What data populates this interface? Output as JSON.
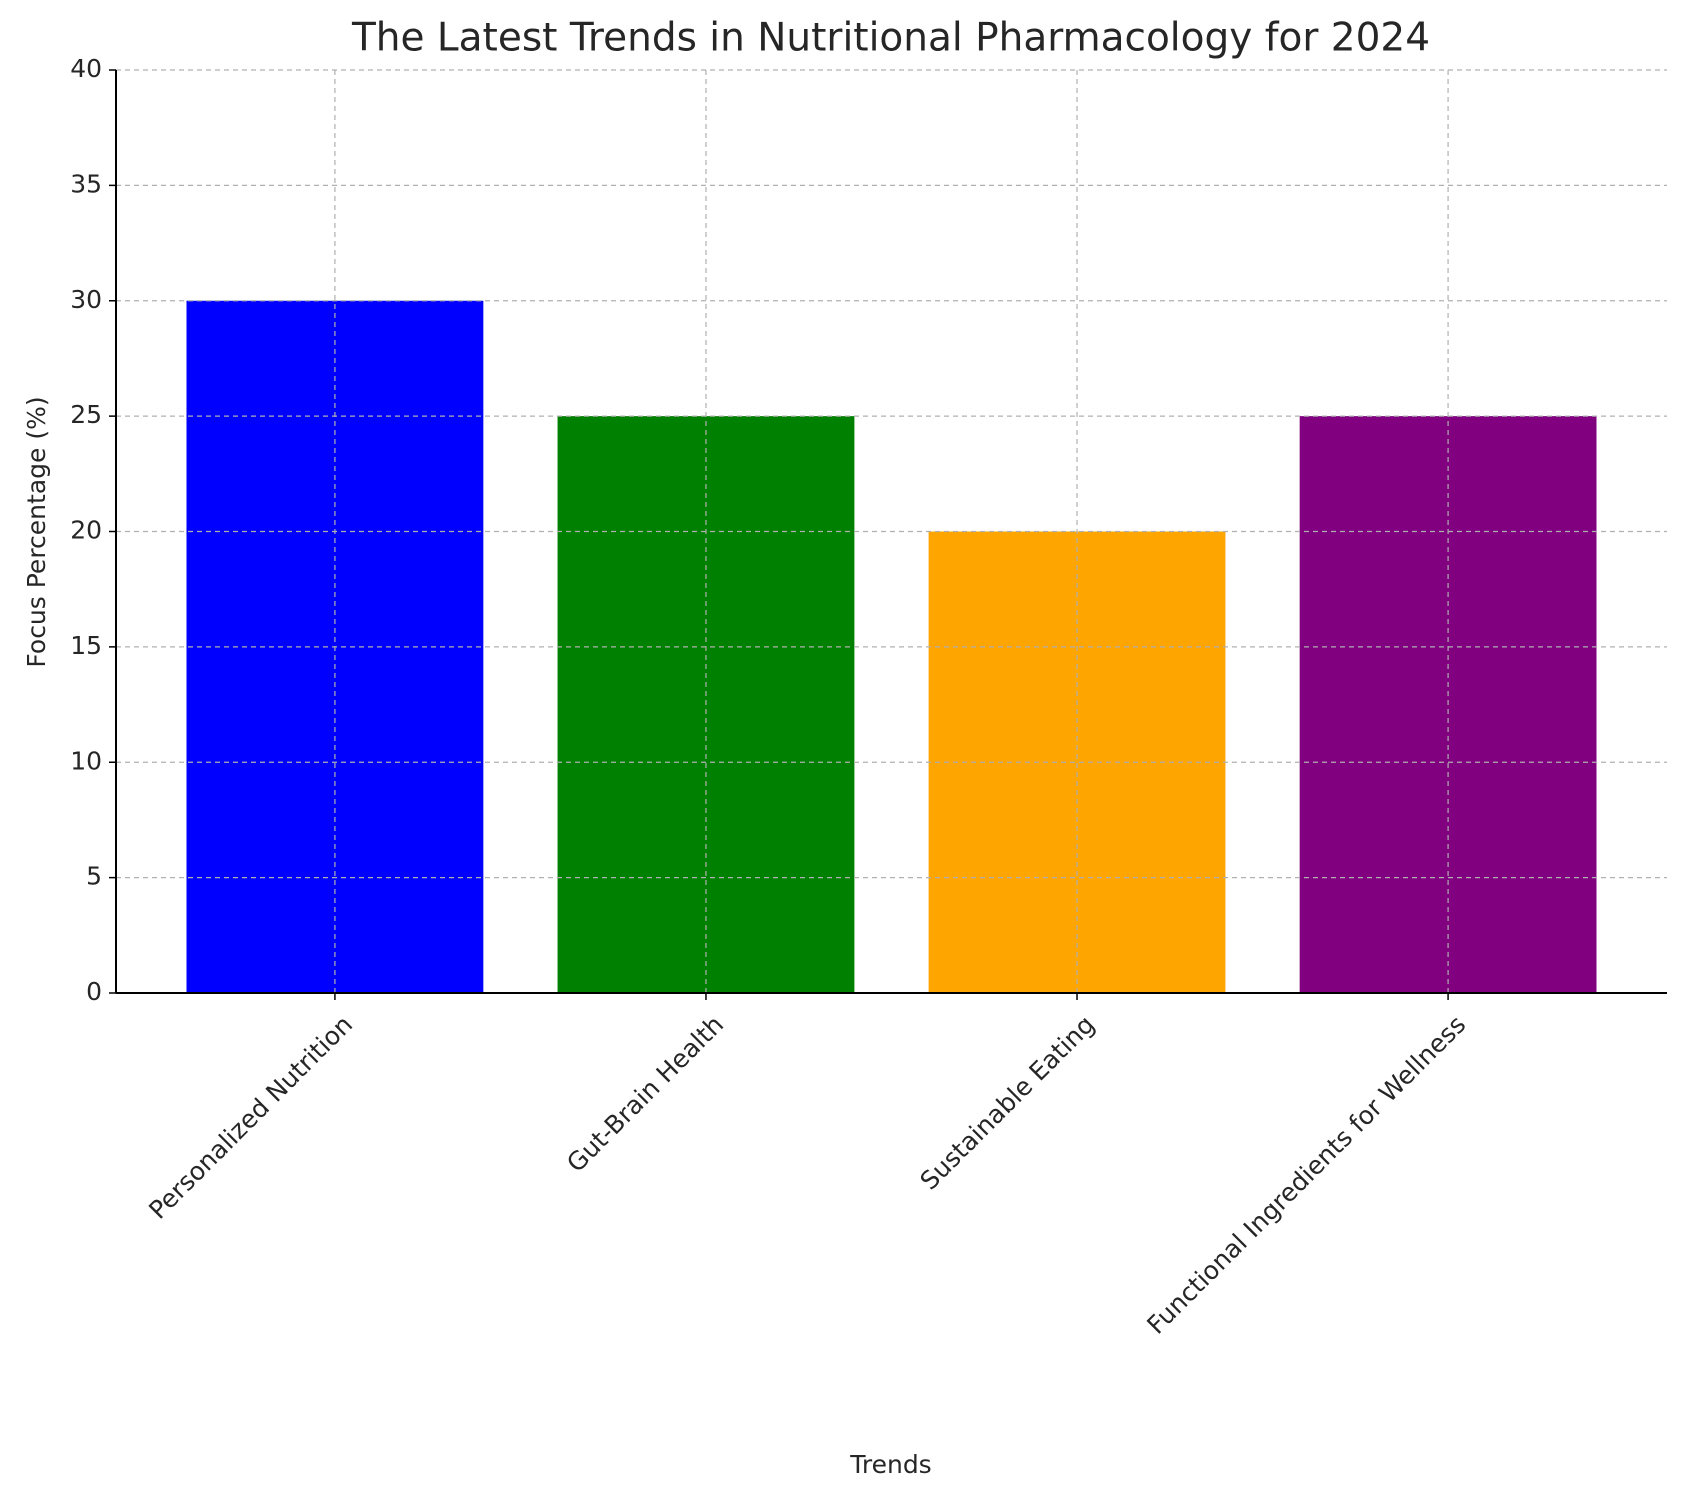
{
  "chart_data": {
    "type": "bar",
    "title": "The Latest Trends in Nutritional Pharmacology for 2024",
    "x_label": "Trends",
    "y_label": "Focus Percentage (%)",
    "categories": [
      "Personalized Nutrition",
      "Gut-Brain Health",
      "Sustainable Eating",
      "Functional Ingredients for Wellness"
    ],
    "values": [
      30,
      25,
      20,
      25
    ],
    "colors": [
      "#0000ff",
      "#008000",
      "#ffa500",
      "#800080"
    ],
    "ylim": [
      0,
      40
    ],
    "yticks": [
      0,
      5,
      10,
      15,
      20,
      25,
      30,
      35,
      40
    ],
    "grid": true
  }
}
